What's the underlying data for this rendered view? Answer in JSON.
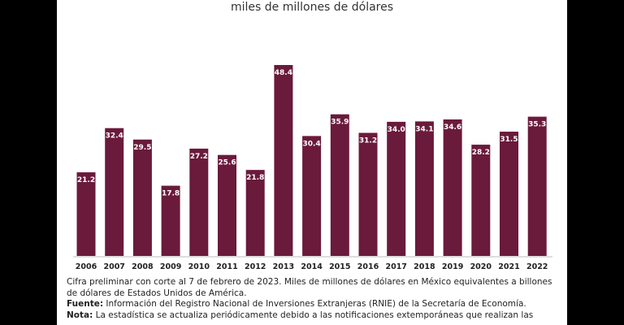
{
  "chart_data": {
    "type": "bar",
    "subtitle": "miles de millones de dólares",
    "categories": [
      "2006",
      "2007",
      "2008",
      "2009",
      "2010",
      "2011",
      "2012",
      "2013",
      "2014",
      "2015",
      "2016",
      "2017",
      "2018",
      "2019",
      "2020",
      "2021",
      "2022"
    ],
    "values": [
      21.2,
      32.4,
      29.5,
      17.8,
      27.2,
      25.6,
      21.8,
      48.4,
      30.4,
      35.9,
      31.2,
      34.0,
      34.1,
      34.6,
      28.2,
      31.5,
      35.3
    ],
    "value_labels": [
      "21.2",
      "32.4",
      "29.5",
      "17.8",
      "27.2",
      "25.6",
      "21.8",
      "48.4",
      "30.4",
      "35.9",
      "31.2",
      "34.0",
      "34.1",
      "34.6",
      "28.2",
      "31.5",
      "35.3"
    ],
    "color": "#6a1a3b"
  },
  "footnotes": {
    "note1": "Cifra preliminar con corte al 7 de febrero de 2023. Miles de millones de dólares en México equivalentes a billones de dólares de Estados Unidos de América.",
    "source_label": "Fuente:",
    "source": "Información del Registro Nacional de Inversiones Extranjeras (RNIE) de la Secretaría de Economía.",
    "nota_label": "Nota:",
    "nota": "La estadística se actualiza periódicamente debido a las notificaciones extemporáneas que realizan las"
  }
}
